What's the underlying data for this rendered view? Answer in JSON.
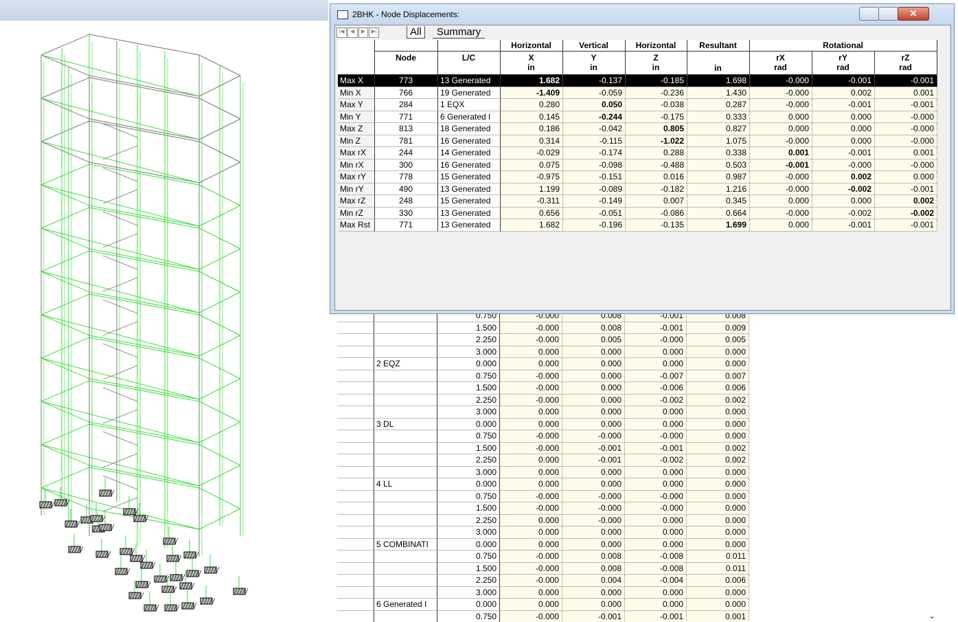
{
  "window": {
    "title": "2BHK - Node Displacements:",
    "tabs": [
      "All",
      "Summary"
    ]
  },
  "summary_table": {
    "group_headers": [
      "Horizontal",
      "Vertical",
      "Horizontal",
      "Resultant",
      "Rotational"
    ],
    "columns": [
      {
        "label": "Node"
      },
      {
        "label": "L/C"
      },
      {
        "label": "X",
        "unit": "in"
      },
      {
        "label": "Y",
        "unit": "in"
      },
      {
        "label": "Z",
        "unit": "in"
      },
      {
        "unit": "in"
      },
      {
        "label": "rX",
        "unit": "rad"
      },
      {
        "label": "rY",
        "unit": "rad"
      },
      {
        "label": "rZ",
        "unit": "rad"
      }
    ],
    "rows": [
      {
        "label": "Max X",
        "node": "773",
        "load_case": "13 Generated",
        "values": [
          "1.682",
          "-0.137",
          "-0.185",
          "1.698",
          "-0.000",
          "-0.001",
          "-0.001"
        ]
      },
      {
        "label": "Min X",
        "node": "766",
        "load_case": "19 Generated",
        "values": [
          "-1.409",
          "-0.059",
          "-0.236",
          "1.430",
          "-0.000",
          "0.002",
          "0.001"
        ]
      },
      {
        "label": "Max Y",
        "node": "284",
        "load_case": "1 EQX",
        "values": [
          "0.280",
          "0.050",
          "-0.038",
          "0.287",
          "-0.000",
          "-0.001",
          "-0.001"
        ]
      },
      {
        "label": "Min Y",
        "node": "771",
        "load_case": "6 Generated I",
        "values": [
          "0.145",
          "-0.244",
          "-0.175",
          "0.333",
          "0.000",
          "0.000",
          "-0.000"
        ]
      },
      {
        "label": "Max Z",
        "node": "813",
        "load_case": "18 Generated",
        "values": [
          "0.186",
          "-0.042",
          "0.805",
          "0.827",
          "0.000",
          "0.000",
          "-0.000"
        ]
      },
      {
        "label": "Min Z",
        "node": "781",
        "load_case": "16 Generated",
        "values": [
          "0.314",
          "-0.115",
          "-1.022",
          "1.075",
          "-0.000",
          "0.000",
          "-0.000"
        ]
      },
      {
        "label": "Max rX",
        "node": "244",
        "load_case": "14 Generated",
        "values": [
          "-0.029",
          "-0.174",
          "0.288",
          "0.338",
          "0.001",
          "-0.001",
          "0.001"
        ]
      },
      {
        "label": "Min rX",
        "node": "300",
        "load_case": "16 Generated",
        "values": [
          "0.075",
          "-0.098",
          "-0.488",
          "0.503",
          "-0.001",
          "-0.000",
          "-0.000"
        ]
      },
      {
        "label": "Max rY",
        "node": "778",
        "load_case": "15 Generated",
        "values": [
          "-0.975",
          "-0.151",
          "0.016",
          "0.987",
          "-0.000",
          "0.002",
          "0.000"
        ]
      },
      {
        "label": "Min rY",
        "node": "490",
        "load_case": "13 Generated",
        "values": [
          "1.199",
          "-0.089",
          "-0.182",
          "1.216",
          "-0.000",
          "-0.002",
          "-0.001"
        ]
      },
      {
        "label": "Max rZ",
        "node": "248",
        "load_case": "15 Generated",
        "values": [
          "-0.311",
          "-0.149",
          "0.007",
          "0.345",
          "0.000",
          "0.000",
          "0.002"
        ]
      },
      {
        "label": "Min rZ",
        "node": "330",
        "load_case": "13 Generated",
        "values": [
          "0.656",
          "-0.051",
          "-0.086",
          "0.664",
          "-0.000",
          "-0.002",
          "-0.002"
        ]
      },
      {
        "label": "Max Rst",
        "node": "771",
        "load_case": "13 Generated",
        "values": [
          "1.682",
          "-0.196",
          "-0.135",
          "1.699",
          "0.000",
          "-0.001",
          "-0.001"
        ]
      }
    ]
  },
  "detail_table": {
    "rows": [
      {
        "values": [
          "0.750",
          "-0.000",
          "0.008",
          "-0.001",
          "0.008"
        ]
      },
      {
        "values": [
          "1.500",
          "-0.000",
          "0.008",
          "-0.001",
          "0.009"
        ]
      },
      {
        "values": [
          "2.250",
          "-0.000",
          "0.005",
          "-0.000",
          "0.005"
        ]
      },
      {
        "values": [
          "3.000",
          "0.000",
          "0.000",
          "0.000",
          "0.000"
        ]
      },
      {
        "load_case": "2 EQZ",
        "values": [
          "0.000",
          "0.000",
          "0.000",
          "0.000",
          "0.000"
        ]
      },
      {
        "values": [
          "0.750",
          "-0.000",
          "0.000",
          "-0.007",
          "0.007"
        ]
      },
      {
        "values": [
          "1.500",
          "-0.000",
          "0.000",
          "-0.006",
          "0.006"
        ]
      },
      {
        "values": [
          "2.250",
          "-0.000",
          "0.000",
          "-0.002",
          "0.002"
        ]
      },
      {
        "values": [
          "3.000",
          "0.000",
          "0.000",
          "0.000",
          "0.000"
        ]
      },
      {
        "load_case": "3 DL",
        "values": [
          "0.000",
          "0.000",
          "0.000",
          "0.000",
          "0.000"
        ]
      },
      {
        "values": [
          "0.750",
          "-0.000",
          "-0.000",
          "-0.000",
          "0.000"
        ]
      },
      {
        "values": [
          "1.500",
          "-0.000",
          "-0.001",
          "-0.001",
          "0.002"
        ]
      },
      {
        "values": [
          "2.250",
          "0.000",
          "-0.001",
          "-0.002",
          "0.002"
        ]
      },
      {
        "values": [
          "3.000",
          "0.000",
          "0.000",
          "0.000",
          "0.000"
        ]
      },
      {
        "load_case": "4 LL",
        "values": [
          "0.000",
          "0.000",
          "0.000",
          "0.000",
          "0.000"
        ]
      },
      {
        "values": [
          "0.750",
          "-0.000",
          "-0.000",
          "-0.000",
          "0.000"
        ]
      },
      {
        "values": [
          "1.500",
          "-0.000",
          "-0.000",
          "-0.000",
          "0.000"
        ]
      },
      {
        "values": [
          "2.250",
          "0.000",
          "-0.000",
          "0.000",
          "0.000"
        ]
      },
      {
        "values": [
          "3.000",
          "0.000",
          "0.000",
          "0.000",
          "0.000"
        ]
      },
      {
        "load_case": "5 COMBINATI",
        "values": [
          "0.000",
          "0.000",
          "0.000",
          "0.000",
          "0.000"
        ]
      },
      {
        "values": [
          "0.750",
          "-0.000",
          "0.008",
          "-0.008",
          "0.011"
        ]
      },
      {
        "values": [
          "1.500",
          "-0.000",
          "0.008",
          "-0.008",
          "0.011"
        ]
      },
      {
        "values": [
          "2.250",
          "-0.000",
          "0.004",
          "-0.004",
          "0.006"
        ]
      },
      {
        "values": [
          "3.000",
          "0.000",
          "0.000",
          "0.000",
          "0.000"
        ]
      },
      {
        "load_case": "6 Generated I",
        "values": [
          "0.000",
          "0.000",
          "0.000",
          "0.000",
          "0.000"
        ]
      },
      {
        "values": [
          "0.750",
          "-0.000",
          "-0.001",
          "-0.001",
          "0.001"
        ]
      }
    ]
  }
}
